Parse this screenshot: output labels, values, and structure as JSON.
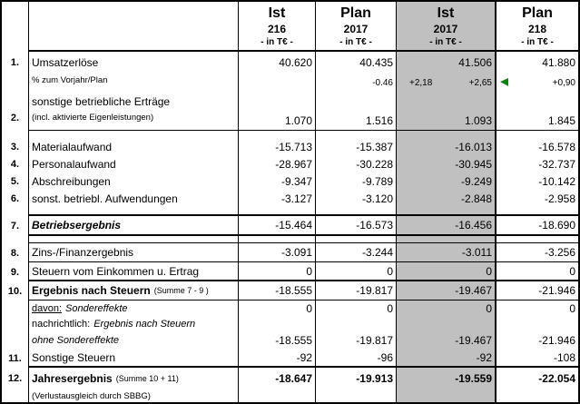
{
  "header": {
    "cols": [
      {
        "period": "Ist",
        "year": "216",
        "unit": "- in T€ -"
      },
      {
        "period": "Plan",
        "year": "2017",
        "unit": "- in T€ -"
      },
      {
        "period": "Ist",
        "year": "2017",
        "unit": "- in T€ -"
      },
      {
        "period": "Plan",
        "year": "218",
        "unit": "- in T€ -"
      }
    ]
  },
  "rows": {
    "umsatzerloese": {
      "num": "1.",
      "label": "Umsatzerlöse",
      "values": [
        "40.620",
        "40.435",
        "41.506",
        "41.880"
      ]
    },
    "umsatz_pct": {
      "label": "% zum Vorjahr/Plan",
      "ist216": "",
      "plan2017": "-0.46",
      "ist2017_a": "+2,18",
      "ist2017_b": "+2,65",
      "plan218": "+0,90"
    },
    "sonstige_ertraege": {
      "num": "2.",
      "label": "sonstige betriebliche Erträge",
      "sublabel": "(incl. aktivierte Eigenleistungen)",
      "values": [
        "1.070",
        "1.516",
        "1.093",
        "1.845"
      ]
    },
    "materialaufwand": {
      "num": "3.",
      "label": "Materialaufwand",
      "values": [
        "-15.713",
        "-15.387",
        "-16.013",
        "-16.578"
      ]
    },
    "personalaufwand": {
      "num": "4.",
      "label": "Personalaufwand",
      "values": [
        "-28.967",
        "-30.228",
        "-30.945",
        "-32.737"
      ]
    },
    "abschreibungen": {
      "num": "5.",
      "label": "Abschreibungen",
      "values": [
        "-9.347",
        "-9.789",
        "-9.249",
        "-10.142"
      ]
    },
    "sonst_aufwendungen": {
      "num": "6.",
      "label": "sonst. betriebl. Aufwendungen",
      "values": [
        "-3.127",
        "-3.120",
        "-2.848",
        "-2.958"
      ]
    },
    "betriebsergebnis": {
      "num": "7.",
      "label": "Betriebsergebnis",
      "values": [
        "-15.464",
        "-16.573",
        "-16.456",
        "-18.690"
      ]
    },
    "finanzergebnis": {
      "num": "8.",
      "label": "Zins-/Finanzergebnis",
      "values": [
        "-3.091",
        "-3.244",
        "-3.011",
        "-3.256"
      ]
    },
    "steuern_einkommen": {
      "num": "9.",
      "label": "Steuern vom Einkommen u. Ertrag",
      "values": [
        "0",
        "0",
        "0",
        "0"
      ]
    },
    "ergebnis_nach_steuern": {
      "num": "10.",
      "label": "Ergebnis nach Steuern",
      "suffix": "(Summe 7 - 9 )",
      "values": [
        "-18.555",
        "-19.817",
        "-19.467",
        "-21.946"
      ]
    },
    "sondereffekte": {
      "prefix": "davon:",
      "label": "Sondereffekte",
      "values": [
        "0",
        "0",
        "0",
        "0"
      ]
    },
    "nachrichtlich": {
      "prefix": "nachrichtlich:",
      "label": "Ergebnis nach Steuern",
      "label2": "ohne Sondereffekte",
      "values": [
        "-18.555",
        "-19.817",
        "-19.467",
        "-21.946"
      ]
    },
    "sonstige_steuern": {
      "num": "11.",
      "label": "Sonstige Steuern",
      "values": [
        "-92",
        "-96",
        "-92",
        "-108"
      ]
    },
    "jahresergebnis": {
      "num": "12.",
      "label": "Jahresergebnis",
      "suffix": "(Summe 10 + 11)",
      "sublabel": "(Verlustausgleich durch SBBG)",
      "values": [
        "-18.647",
        "-19.913",
        "-19.559",
        "-22.054"
      ]
    }
  },
  "colors": {
    "highlight_column": "#c0c0c0",
    "marker_green": "#0a870a",
    "border": "#000000"
  }
}
